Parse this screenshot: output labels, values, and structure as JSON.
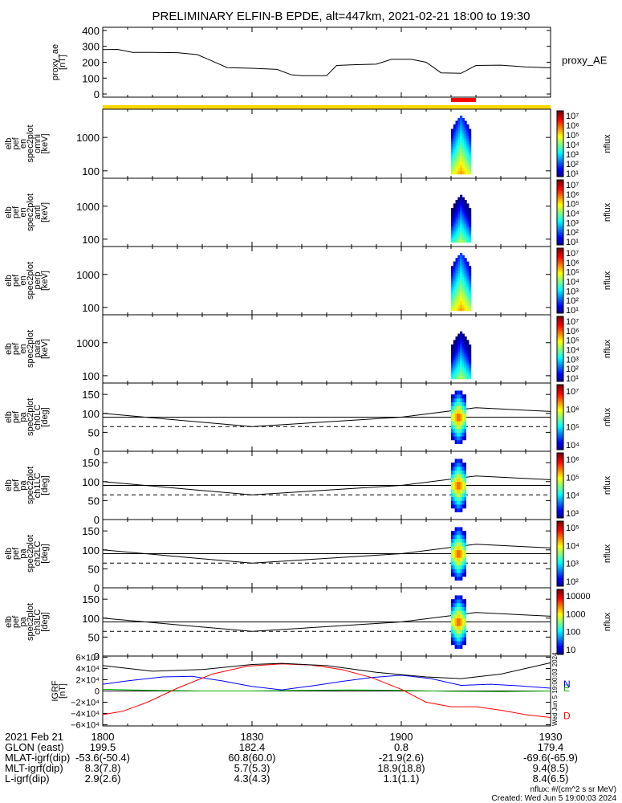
{
  "title": "PRELIMINARY ELFIN-B EPDE, alt=447km, 2021-02-21 18:00 to 19:30",
  "chart_data": {
    "type": "line",
    "x_range": [
      "18:00",
      "19:30"
    ],
    "panels": [
      {
        "id": "proxy_ae",
        "ylabel_lines": [
          "proxy_ae",
          "[nT]"
        ],
        "ylim": [
          -20,
          420
        ],
        "yticks": [
          0,
          100,
          200,
          300,
          400
        ],
        "legend": "proxy_AE",
        "series": [
          {
            "name": "proxy_AE",
            "x": [
              "18:00",
              "18:03",
              "18:06",
              "18:10",
              "18:15",
              "18:19",
              "18:22",
              "18:25",
              "18:30",
              "18:35",
              "18:38",
              "18:40",
              "18:45",
              "18:47",
              "18:51",
              "18:55",
              "18:58",
              "19:02",
              "19:05",
              "19:08",
              "19:12",
              "19:15",
              "19:20",
              "19:25",
              "19:30"
            ],
            "y": [
              280,
              281,
              262,
              262,
              260,
              248,
              208,
              166,
              162,
              155,
              120,
              115,
              115,
              180,
              185,
              188,
              218,
              218,
              200,
              133,
              130,
              180,
              182,
              170,
              165
            ]
          }
        ]
      },
      {
        "id": "spec_omni",
        "ylabel_lines": [
          "elb",
          "pef",
          "en",
          "spec2plot",
          "omni",
          "[keV]"
        ],
        "ylim_log": [
          60,
          7000
        ],
        "yticks": [
          100,
          1000
        ],
        "ytick_labels": [
          "100",
          "1000"
        ],
        "colorbar": {
          "label": "nflux",
          "tick_labels": [
            "10⁷",
            "10⁶",
            "10⁵",
            "10⁴",
            "10³",
            "10²",
            "10¹"
          ]
        }
      },
      {
        "id": "spec_anti",
        "ylabel_lines": [
          "elb",
          "pef",
          "en",
          "spec2plot",
          "anti",
          "[keV]"
        ],
        "ylim_log": [
          60,
          7000
        ],
        "yticks": [
          100,
          1000
        ],
        "ytick_labels": [
          "100",
          "1000"
        ],
        "colorbar": {
          "label": "nflux",
          "tick_labels": [
            "10⁷",
            "10⁶",
            "10⁵",
            "10⁴",
            "10³",
            "10²",
            "10¹"
          ]
        }
      },
      {
        "id": "spec_perp",
        "ylabel_lines": [
          "elb",
          "pef",
          "en",
          "spec2plot",
          "perp",
          "[keV]"
        ],
        "ylim_log": [
          60,
          7000
        ],
        "yticks": [
          100,
          1000
        ],
        "ytick_labels": [
          "100",
          "1000"
        ],
        "colorbar": {
          "label": "nflux",
          "tick_labels": [
            "10⁷",
            "10⁶",
            "10⁵",
            "10⁴",
            "10³",
            "10²",
            "10¹"
          ]
        }
      },
      {
        "id": "spec_para",
        "ylabel_lines": [
          "elb",
          "pef",
          "en",
          "spec2plot",
          "para",
          "[keV]"
        ],
        "ylim_log": [
          60,
          7000
        ],
        "yticks": [
          100,
          1000
        ],
        "ytick_labels": [
          "100",
          "1000"
        ],
        "colorbar": {
          "label": "nflux",
          "tick_labels": [
            "10⁷",
            "10⁶",
            "10⁵",
            "10⁴",
            "10³",
            "10²",
            "10¹"
          ]
        }
      },
      {
        "id": "pa_ch0",
        "ylabel_lines": [
          "elb",
          "pef",
          "pa",
          "spec2plot",
          "ch0LC",
          "[deg]"
        ],
        "ylim": [
          0,
          180
        ],
        "yticks": [
          0,
          50,
          100,
          150
        ],
        "colorbar": {
          "label": "nflux",
          "tick_labels": [
            "10⁷",
            "10⁶",
            "10⁵",
            "10⁴"
          ]
        }
      },
      {
        "id": "pa_ch1",
        "ylabel_lines": [
          "elb",
          "pef",
          "pa",
          "spec2plot",
          "ch1LC",
          "[deg]"
        ],
        "ylim": [
          0,
          180
        ],
        "yticks": [
          0,
          50,
          100,
          150
        ],
        "colorbar": {
          "label": "nflux",
          "tick_labels": [
            "10⁶",
            "10⁵",
            "10⁴",
            "10³"
          ]
        }
      },
      {
        "id": "pa_ch2",
        "ylabel_lines": [
          "elb",
          "pef",
          "pa",
          "spec2plot",
          "ch2LC",
          "[deg]"
        ],
        "ylim": [
          0,
          180
        ],
        "yticks": [
          0,
          50,
          100,
          150
        ],
        "colorbar": {
          "label": "nflux",
          "tick_labels": [
            "10⁵",
            "10⁴",
            "10³",
            "10²"
          ]
        }
      },
      {
        "id": "pa_ch3",
        "ylabel_lines": [
          "elb",
          "pef",
          "pa",
          "spec2plot",
          "ch3LC",
          "[deg]"
        ],
        "ylim": [
          0,
          180
        ],
        "yticks": [
          0,
          50,
          100,
          150
        ],
        "colorbar": {
          "label": "nflux",
          "tick_labels": [
            "10000",
            "1000",
            "100",
            "10"
          ]
        }
      },
      {
        "id": "igrf",
        "ylabel_lines": [
          "IGRF",
          "[nT]"
        ],
        "ylim": [
          -62000,
          62000
        ],
        "ytick_labels": [
          "6×10⁴",
          "4×10⁴",
          "2×10⁴",
          "0",
          "−2×10⁴",
          "−4×10⁴",
          "−6×10⁴"
        ],
        "yticks": [
          60000,
          40000,
          20000,
          0,
          -20000,
          -40000,
          -60000
        ],
        "legend_labels": [
          "N",
          "E",
          "D"
        ],
        "series": [
          {
            "name": "N",
            "color": "#0000ff",
            "x": [
              "18:00",
              "18:05",
              "18:12",
              "18:18",
              "18:24",
              "18:30",
              "18:36",
              "18:42",
              "18:48",
              "18:54",
              "19:00",
              "19:06",
              "19:12",
              "19:18",
              "19:24",
              "19:30"
            ],
            "y": [
              12000,
              18000,
              25000,
              26000,
              18000,
              8000,
              2000,
              9000,
              17000,
              24000,
              28000,
              22000,
              10000,
              12000,
              9000,
              5000
            ]
          },
          {
            "name": "E",
            "color": "#00b000",
            "x": [
              "18:00",
              "18:10",
              "18:20",
              "18:30",
              "18:40",
              "18:50",
              "19:00",
              "19:10",
              "19:20",
              "19:30"
            ],
            "y": [
              3000,
              1000,
              0,
              0,
              1000,
              2000,
              1000,
              -500,
              -1000,
              0
            ]
          },
          {
            "name": "D",
            "color": "#ff0000",
            "x": [
              "18:00",
              "18:04",
              "18:09",
              "18:15",
              "18:22",
              "18:29",
              "18:36",
              "18:42",
              "18:48",
              "18:54",
              "19:00",
              "19:05",
              "19:10",
              "19:15",
              "19:20",
              "19:25",
              "19:30"
            ],
            "y": [
              -42000,
              -36000,
              -20000,
              5000,
              30000,
              44000,
              48000,
              46000,
              38000,
              24000,
              3000,
              -20000,
              -28000,
              -28000,
              -34000,
              -42000,
              -47000
            ]
          }
        ]
      }
    ],
    "reference_lines": {
      "pa_upper_deg": 90,
      "pa_lower_dashed_deg": 65
    }
  },
  "x_ticks": [
    {
      "label": "2021 Feb 21",
      "glon": "GLON (east)",
      "mlat": "MLAT-igrf(dip)",
      "mlt": "MLT-igrf(dip)",
      "l": "L-igrf(dip)"
    },
    {
      "time": "1800",
      "glon": "199.5",
      "mlat": "-53.6(-50.4)",
      "mlt": "8.3(7.8)",
      "l": "2.9(2.6)"
    },
    {
      "time": "1830",
      "glon": "182.4",
      "mlat": "60.8(60.0)",
      "mlt": "5.7(5.3)",
      "l": "4.3(4.3)"
    },
    {
      "time": "1900",
      "glon": "0.8",
      "mlat": "-21.9(2.6)",
      "mlt": "18.9(18.8)",
      "l": "1.1(1.1)"
    },
    {
      "time": "1930",
      "glon": "179.4",
      "mlat": "-69.6(-65.9)",
      "mlt": "9.4(8.5)",
      "l": "8.4(6.5)"
    }
  ],
  "footer": {
    "units": "nflux: #/(cm^2 s sr MeV)",
    "created": "Created: Wed Jun  5 19:00:03 2024",
    "side_stamp": "Wed Jun  5 19:00:03 2024"
  },
  "colors": {
    "status_bar": "#ffd700",
    "highlight_bar": "#ff0000"
  }
}
